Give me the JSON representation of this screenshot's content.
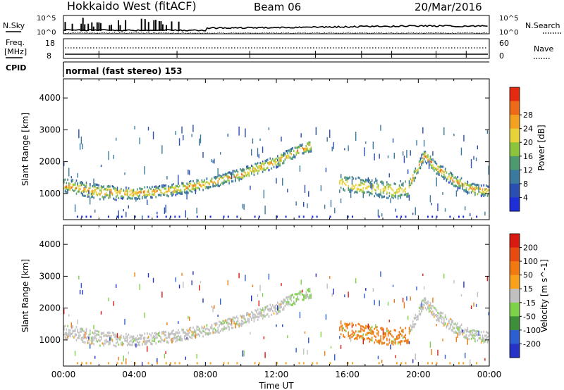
{
  "header": {
    "station": "Hokkaido West (fitACF)",
    "beam": "Beam 06",
    "date": "20/Mar/2016"
  },
  "noise_panel": {
    "left_label": "N.Sky",
    "right_label": "N.Search",
    "tick_top": "10^5",
    "tick_bottom": "10^0"
  },
  "freq_panel": {
    "left_label_line1": "Freq.",
    "left_label_line2": "[MHz]",
    "right_label": "Nave",
    "left_ticks": [
      "18",
      "8"
    ],
    "right_ticks": [
      "60",
      "0"
    ]
  },
  "cpid_panel": {
    "label": "CPID",
    "mode_text": "normal (fast stereo) 153"
  },
  "chart_data": [
    {
      "type": "heatmap",
      "parameter": "Power",
      "colorbar_label": "Power [dB]",
      "ylabel": "Slant Range [km]",
      "xlabel": "Time UT",
      "x_ticks": [
        "00:00",
        "04:00",
        "08:00",
        "12:00",
        "16:00",
        "20:00",
        "00:00"
      ],
      "x_range_hours": [
        0,
        24
      ],
      "y_ticks": [
        1000,
        2000,
        3000,
        4000
      ],
      "ylim": [
        180,
        4600
      ],
      "colorbar_ticks": [
        4,
        8,
        12,
        16,
        20,
        24,
        28
      ],
      "colorbar_range": [
        0,
        32
      ],
      "colorbar_colors": [
        "#1f2fd8",
        "#2a4fb0",
        "#3b7a9e",
        "#4e9a6e",
        "#8cc43c",
        "#e8d23a",
        "#f4a020",
        "#ee6a18",
        "#e52a12"
      ],
      "echo_bands": [
        {
          "name": "main",
          "t": [
            0,
            2,
            4,
            6,
            8,
            10,
            12,
            13,
            14
          ],
          "r": [
            1250,
            1050,
            1000,
            1100,
            1300,
            1600,
            2000,
            2300,
            2500
          ]
        },
        {
          "name": "afternoon",
          "t": [
            15.5,
            17,
            18.5,
            19.5
          ],
          "r": [
            1350,
            1200,
            1100,
            1150
          ]
        },
        {
          "name": "evening",
          "t": [
            19.5,
            20.3,
            21,
            22,
            23,
            24
          ],
          "r": [
            1300,
            2200,
            1800,
            1400,
            1150,
            1050
          ]
        }
      ]
    },
    {
      "type": "heatmap",
      "parameter": "Velocity",
      "colorbar_label": "Velocity [m s^-1]",
      "ylabel": "Slant Range [km]",
      "xlabel": "Time UT",
      "x_ticks": [
        "00:00",
        "04:00",
        "08:00",
        "12:00",
        "16:00",
        "20:00",
        "00:00"
      ],
      "x_range_hours": [
        0,
        24
      ],
      "y_ticks": [
        1000,
        2000,
        3000,
        4000
      ],
      "ylim": [
        180,
        4600
      ],
      "colorbar_ticks": [
        "200",
        "100",
        "50",
        "15",
        "-15",
        "-50",
        "-100",
        "-200"
      ],
      "colorbar_colors": [
        "#2633c6",
        "#2e5fd0",
        "#3f8f3a",
        "#7ed24a",
        "#c0c0c0",
        "#f7a21a",
        "#f07a10",
        "#e84b10",
        "#d81a10"
      ],
      "echo_bands": [
        {
          "name": "main",
          "t": [
            0,
            2,
            4,
            6,
            8,
            10,
            12,
            13,
            14
          ],
          "r": [
            1250,
            1050,
            1000,
            1100,
            1300,
            1600,
            2000,
            2300,
            2500
          ],
          "velocity": "~0 (grey)"
        },
        {
          "name": "afternoon",
          "t": [
            15.5,
            17,
            18.5,
            19.5
          ],
          "r": [
            1350,
            1200,
            1100,
            1150
          ],
          "velocity": "-50 to -100 (orange)"
        },
        {
          "name": "evening",
          "t": [
            19.5,
            20.3,
            21,
            22,
            23,
            24
          ],
          "r": [
            1300,
            2200,
            1800,
            1400,
            1150,
            1050
          ],
          "velocity": "~0 (grey)"
        }
      ]
    }
  ]
}
